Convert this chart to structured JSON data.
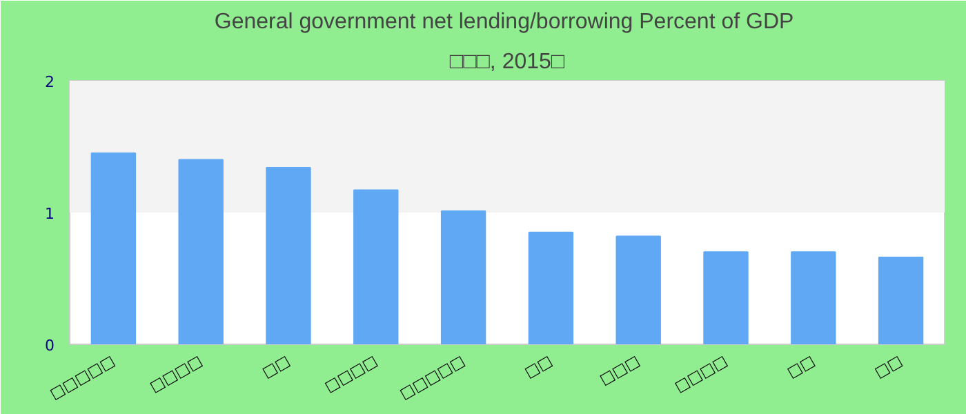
{
  "chart_data": {
    "type": "bar",
    "title": "General government net lending/borrowing  Percent of GDP",
    "subtitle": "□□□, 2015□",
    "categories": [
      "□□□□□",
      "□□□□",
      "□□",
      "□□□□",
      "□□□□□",
      "□□",
      "□□□",
      "□□□□",
      "□□",
      "□□"
    ],
    "values": [
      1.45,
      1.4,
      1.34,
      1.17,
      1.01,
      0.85,
      0.82,
      0.7,
      0.7,
      0.66
    ],
    "color": "#60a8f4",
    "ylim": [
      0,
      2
    ],
    "yticks": [
      0,
      1,
      2
    ],
    "grid": false,
    "bands": [
      {
        "axis": "y",
        "from": 1,
        "to": 2,
        "color": "#f3f3f3"
      }
    ]
  }
}
